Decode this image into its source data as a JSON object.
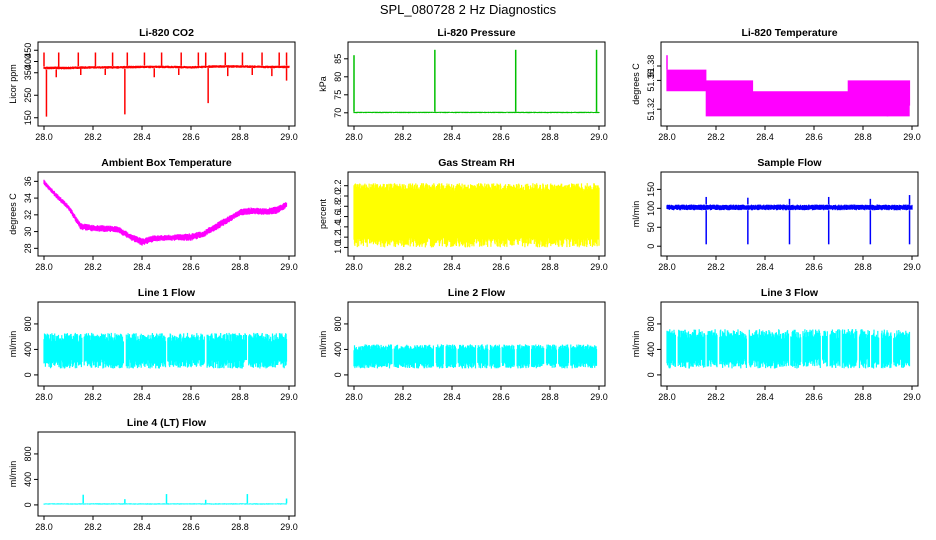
{
  "page": {
    "title": "SPL_080728  2 Hz Diagnostics"
  },
  "chart_data": [
    {
      "type": "line",
      "title": "Li-820 CO2",
      "ylabel": "Licor ppm",
      "color": "#ff0000",
      "xlim": [
        28.0,
        29.0
      ],
      "ylim": [
        140,
        460
      ],
      "xticks": [
        28.0,
        28.2,
        28.4,
        28.6,
        28.8,
        29.0
      ],
      "xtick_labels": [
        "28.0",
        "28.2",
        "28.4",
        "28.6",
        "28.8",
        "29.0"
      ],
      "yticks": [
        150,
        250,
        350,
        400,
        450
      ],
      "ytick_labels": [
        "150",
        "250",
        "350",
        "400",
        "450"
      ],
      "series": [
        {
          "style": "band",
          "x": [
            28.0,
            28.1,
            28.2,
            28.3,
            28.4,
            28.5,
            28.6,
            28.7,
            28.8,
            28.9,
            29.0
          ],
          "ymin": [
            365,
            365,
            368,
            368,
            370,
            370,
            368,
            372,
            372,
            370,
            370
          ],
          "ymax": [
            378,
            378,
            380,
            380,
            382,
            382,
            380,
            384,
            384,
            382,
            382
          ],
          "spikes_up": [
            [
              28.0,
              440
            ],
            [
              28.06,
              440
            ],
            [
              28.14,
              440
            ],
            [
              28.21,
              440
            ],
            [
              28.28,
              440
            ],
            [
              28.34,
              440
            ],
            [
              28.41,
              440
            ],
            [
              28.48,
              440
            ],
            [
              28.56,
              440
            ],
            [
              28.63,
              440
            ],
            [
              28.66,
              440
            ],
            [
              28.74,
              440
            ],
            [
              28.81,
              440
            ],
            [
              28.89,
              440
            ],
            [
              28.96,
              440
            ],
            [
              28.99,
              440
            ]
          ],
          "spikes_down": [
            [
              28.01,
              155
            ],
            [
              28.33,
              165
            ],
            [
              28.67,
              215
            ],
            [
              28.99,
              315
            ],
            [
              28.05,
              330
            ],
            [
              28.15,
              340
            ],
            [
              28.25,
              340
            ],
            [
              28.45,
              330
            ],
            [
              28.55,
              340
            ],
            [
              28.75,
              335
            ],
            [
              28.85,
              340
            ],
            [
              28.93,
              335
            ]
          ]
        }
      ]
    },
    {
      "type": "line",
      "title": "Li-820 Pressure",
      "ylabel": "kPa",
      "color": "#00c000",
      "xlim": [
        28.0,
        29.0
      ],
      "ylim": [
        68,
        88
      ],
      "xticks": [
        28.0,
        28.2,
        28.4,
        28.6,
        28.8,
        29.0
      ],
      "xtick_labels": [
        "28.0",
        "28.2",
        "28.4",
        "28.6",
        "28.8",
        "29.0"
      ],
      "yticks": [
        70,
        75,
        80,
        85
      ],
      "ytick_labels": [
        "70",
        "75",
        "80",
        "85"
      ],
      "series": [
        {
          "style": "band",
          "x": [
            28.0,
            29.0
          ],
          "ymin": [
            69.9,
            69.9
          ],
          "ymax": [
            70.3,
            70.3
          ],
          "spikes_up": [
            [
              28.0,
              86
            ],
            [
              28.33,
              87.5
            ],
            [
              28.66,
              87.5
            ],
            [
              28.99,
              87.5
            ]
          ],
          "spikes_down": []
        }
      ]
    },
    {
      "type": "line",
      "title": "Li-820 Temperature",
      "ylabel": "degrees C",
      "color": "#ff00ff",
      "xlim": [
        28.0,
        29.0
      ],
      "ylim": [
        51.305,
        51.405
      ],
      "xticks": [
        28.0,
        28.2,
        28.4,
        28.6,
        28.8,
        29.0
      ],
      "xtick_labels": [
        "28.0",
        "28.2",
        "28.4",
        "28.6",
        "28.8",
        "29.0"
      ],
      "yticks": [
        51.32,
        51.36,
        51.38
      ],
      "ytick_labels": [
        "51.32",
        "51.36",
        "51.38"
      ],
      "series": [
        {
          "style": "steps",
          "x": [
            28.0,
            28.16,
            28.16,
            28.35,
            28.35,
            28.74,
            28.74,
            28.99,
            28.99
          ],
          "ymin": [
            51.345,
            51.33,
            51.31,
            51.31,
            51.31,
            51.31,
            51.31,
            51.325,
            51.325
          ],
          "ymax": [
            51.375,
            51.375,
            51.36,
            51.36,
            51.345,
            51.345,
            51.36,
            51.36,
            51.375
          ],
          "spikes_up": [
            [
              28.0,
              51.395
            ]
          ],
          "spikes_down": [
            [
              28.9,
              51.31
            ]
          ]
        }
      ]
    },
    {
      "type": "line",
      "title": "Ambient Box Temperature",
      "ylabel": "degrees C",
      "color": "#ff00ff",
      "xlim": [
        28.0,
        29.0
      ],
      "ylim": [
        27.8,
        36.4
      ],
      "xticks": [
        28.0,
        28.2,
        28.4,
        28.6,
        28.8,
        29.0
      ],
      "xtick_labels": [
        "28.0",
        "28.2",
        "28.4",
        "28.6",
        "28.8",
        "29.0"
      ],
      "yticks": [
        28,
        30,
        32,
        34,
        36
      ],
      "ytick_labels": [
        "28",
        "30",
        "32",
        "34",
        "36"
      ],
      "series": [
        {
          "style": "band",
          "x": [
            28.0,
            28.05,
            28.1,
            28.15,
            28.2,
            28.3,
            28.35,
            28.4,
            28.45,
            28.5,
            28.6,
            28.65,
            28.7,
            28.75,
            28.8,
            28.85,
            28.9,
            28.95,
            28.99
          ],
          "ymin": [
            35.6,
            34.0,
            32.6,
            30.2,
            30.0,
            29.9,
            29.0,
            28.3,
            28.8,
            28.9,
            28.9,
            29.3,
            30.1,
            31.0,
            31.9,
            32.0,
            32.0,
            32.1,
            32.8
          ],
          "ymax": [
            36.2,
            34.6,
            33.2,
            31.0,
            30.8,
            30.7,
            29.8,
            29.2,
            29.6,
            29.6,
            29.8,
            30.1,
            31.0,
            31.8,
            32.7,
            32.9,
            32.8,
            33.0,
            33.6
          ],
          "spikes_up": [],
          "spikes_down": []
        }
      ]
    },
    {
      "type": "line",
      "title": "Gas Stream RH",
      "ylabel": "percent",
      "color": "#ffff00",
      "xlim": [
        28.0,
        29.0
      ],
      "ylim": [
        0.95,
        2.35
      ],
      "xticks": [
        28.0,
        28.2,
        28.4,
        28.6,
        28.8,
        29.0
      ],
      "xtick_labels": [
        "28.0",
        "28.2",
        "28.4",
        "28.6",
        "28.8",
        "29.0"
      ],
      "yticks": [
        1.0,
        1.2,
        1.4,
        1.6,
        1.8,
        2.0,
        2.2
      ],
      "ytick_labels": [
        "1.0",
        "1.2",
        "1.4",
        "1.6",
        "1.8",
        "2.0",
        "2.2"
      ],
      "series": [
        {
          "style": "noise",
          "x": [
            28.0,
            29.0
          ],
          "ymin": [
            1.0,
            1.0
          ],
          "ymax": [
            2.25,
            2.25
          ],
          "core": [
            1.2,
            2.1
          ],
          "spikes_up": [],
          "spikes_down": []
        }
      ]
    },
    {
      "type": "line",
      "title": "Sample Flow",
      "ylabel": "ml/min",
      "color": "#0000ff",
      "xlim": [
        28.0,
        29.0
      ],
      "ylim": [
        -10,
        180
      ],
      "xticks": [
        28.0,
        28.2,
        28.4,
        28.6,
        28.8,
        29.0
      ],
      "xtick_labels": [
        "28.0",
        "28.2",
        "28.4",
        "28.6",
        "28.8",
        "29.0"
      ],
      "yticks": [
        0,
        50,
        100,
        150
      ],
      "ytick_labels": [
        "0",
        "50",
        "100",
        "150"
      ],
      "series": [
        {
          "style": "band",
          "x": [
            28.0,
            29.0
          ],
          "ymin": [
            95,
            95
          ],
          "ymax": [
            110,
            110
          ],
          "spikes_up": [
            [
              28.16,
              130
            ],
            [
              28.33,
              128
            ],
            [
              28.5,
              125
            ],
            [
              28.66,
              130
            ],
            [
              28.83,
              125
            ],
            [
              28.99,
              135
            ]
          ],
          "spikes_down": [
            [
              28.16,
              5
            ],
            [
              28.33,
              5
            ],
            [
              28.5,
              5
            ],
            [
              28.66,
              5
            ],
            [
              28.83,
              5
            ],
            [
              28.99,
              5
            ]
          ]
        }
      ]
    },
    {
      "type": "line",
      "title": "Line 1 Flow",
      "ylabel": "ml/min",
      "color": "#00ffff",
      "xlim": [
        28.0,
        29.0
      ],
      "ylim": [
        -80,
        1050
      ],
      "xticks": [
        28.0,
        28.2,
        28.4,
        28.6,
        28.8,
        29.0
      ],
      "xtick_labels": [
        "28.0",
        "28.2",
        "28.4",
        "28.6",
        "28.8",
        "29.0"
      ],
      "yticks": [
        0,
        400,
        800
      ],
      "ytick_labels": [
        "0",
        "400",
        "800"
      ],
      "series": [
        {
          "style": "band",
          "x": [
            28.0,
            28.99
          ],
          "ymin": [
            100,
            100
          ],
          "ymax": [
            660,
            660
          ],
          "gaps": [
            28.16,
            28.33,
            28.5,
            28.66,
            28.83
          ],
          "spikes_up": [],
          "spikes_down": []
        }
      ]
    },
    {
      "type": "line",
      "title": "Line 2 Flow",
      "ylabel": "ml/min",
      "color": "#00ffff",
      "xlim": [
        28.0,
        29.0
      ],
      "ylim": [
        -80,
        1050
      ],
      "xticks": [
        28.0,
        28.2,
        28.4,
        28.6,
        28.8,
        29.0
      ],
      "xtick_labels": [
        "28.0",
        "28.2",
        "28.4",
        "28.6",
        "28.8",
        "29.0"
      ],
      "yticks": [
        0,
        400,
        800
      ],
      "ytick_labels": [
        "0",
        "400",
        "800"
      ],
      "series": [
        {
          "style": "band",
          "x": [
            28.0,
            28.99
          ],
          "ymin": [
            100,
            100
          ],
          "ymax": [
            480,
            480
          ],
          "gaps": [
            28.16,
            28.33,
            28.37,
            28.42,
            28.5,
            28.55,
            28.6,
            28.66,
            28.72,
            28.78,
            28.83,
            28.88
          ],
          "spikes_up": [],
          "spikes_down": []
        }
      ]
    },
    {
      "type": "line",
      "title": "Line 3 Flow",
      "ylabel": "ml/min",
      "color": "#00ffff",
      "xlim": [
        28.0,
        29.0
      ],
      "ylim": [
        -80,
        1050
      ],
      "xticks": [
        28.0,
        28.2,
        28.4,
        28.6,
        28.8,
        29.0
      ],
      "xtick_labels": [
        "28.0",
        "28.2",
        "28.4",
        "28.6",
        "28.8",
        "29.0"
      ],
      "yticks": [
        0,
        400,
        800
      ],
      "ytick_labels": [
        "0",
        "400",
        "800"
      ],
      "series": [
        {
          "style": "band",
          "x": [
            28.0,
            28.99
          ],
          "ymin": [
            100,
            100
          ],
          "ymax": [
            720,
            720
          ],
          "gaps": [
            28.04,
            28.16,
            28.21,
            28.33,
            28.5,
            28.55,
            28.63,
            28.66,
            28.71,
            28.78,
            28.83,
            28.87,
            28.92
          ],
          "spikes_up": [],
          "spikes_down": []
        }
      ]
    },
    {
      "type": "line",
      "title": "Line 4 (LT) Flow",
      "ylabel": "ml/min",
      "color": "#00ffff",
      "xlim": [
        28.0,
        29.0
      ],
      "ylim": [
        -80,
        1050
      ],
      "xticks": [
        28.0,
        28.2,
        28.4,
        28.6,
        28.8,
        29.0
      ],
      "xtick_labels": [
        "28.0",
        "28.2",
        "28.4",
        "28.6",
        "28.8",
        "29.0"
      ],
      "yticks": [
        0,
        400,
        800
      ],
      "ytick_labels": [
        "0",
        "400",
        "800"
      ],
      "series": [
        {
          "style": "band",
          "x": [
            28.0,
            28.99
          ],
          "ymin": [
            5,
            5
          ],
          "ymax": [
            25,
            25
          ],
          "gaps": [],
          "spikes_up": [
            [
              28.16,
              160
            ],
            [
              28.33,
              90
            ],
            [
              28.5,
              170
            ],
            [
              28.66,
              80
            ],
            [
              28.83,
              170
            ],
            [
              28.99,
              100
            ]
          ],
          "spikes_down": []
        }
      ]
    }
  ]
}
